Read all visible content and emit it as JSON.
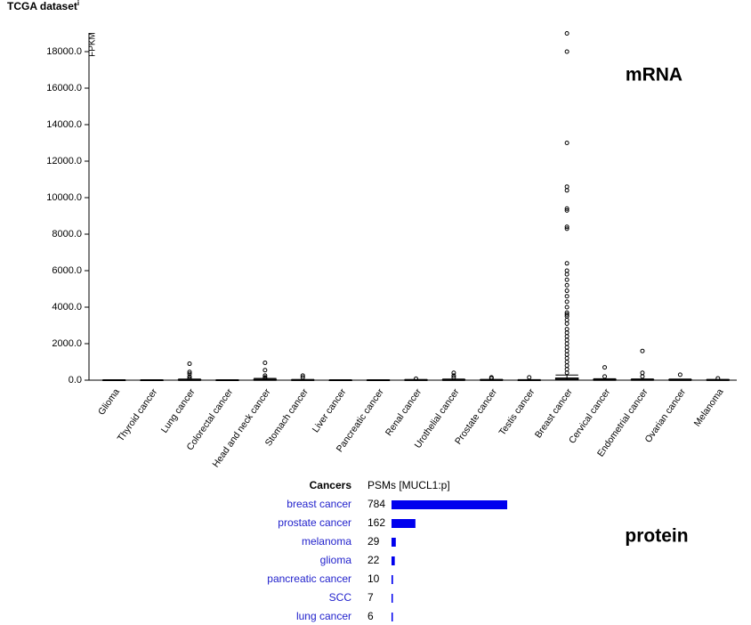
{
  "title": "TCGA dataset",
  "title_sup": "i",
  "chart_data": {
    "type": "box",
    "categories": [
      "Glioma",
      "Thyroid cancer",
      "Lung cancer",
      "Colorectal cancer",
      "Head and neck cancer",
      "Stomach cancer",
      "Liver cancer",
      "Pancreatic cancer",
      "Renal cancer",
      "Urothelial cancer",
      "Prostate cancer",
      "Testis cancer",
      "Breast cancer",
      "Cervical cancer",
      "Endometrial cancer",
      "Ovarian cancer",
      "Melanoma"
    ],
    "ylabel": "FPKM",
    "annotation": "mRNA",
    "ylim": [
      0,
      19000
    ],
    "yticks": [
      {
        "value": 0,
        "label": "0.0"
      },
      {
        "value": 2000,
        "label": "2000.0"
      },
      {
        "value": 4000,
        "label": "4000.0"
      },
      {
        "value": 6000,
        "label": "6000.0"
      },
      {
        "value": 8000,
        "label": "8000.0"
      },
      {
        "value": 10000,
        "label": "10000.0"
      },
      {
        "value": 12000,
        "label": "12000.0"
      },
      {
        "value": 14000,
        "label": "14000.0"
      },
      {
        "value": 16000,
        "label": "16000.0"
      },
      {
        "value": 18000,
        "label": "18000.0"
      }
    ],
    "whisker_low": [
      0,
      0,
      0,
      0,
      0,
      0,
      0,
      0,
      0,
      0,
      0,
      0,
      0,
      0,
      0,
      0,
      0
    ],
    "q1": [
      1,
      1,
      2,
      1,
      3,
      1,
      0,
      1,
      2,
      2,
      2,
      1,
      10,
      3,
      3,
      2,
      2
    ],
    "median": [
      3,
      2,
      8,
      3,
      12,
      5,
      1,
      3,
      6,
      8,
      7,
      4,
      40,
      12,
      10,
      8,
      6
    ],
    "q3": [
      8,
      5,
      25,
      8,
      40,
      15,
      3,
      8,
      15,
      25,
      20,
      10,
      120,
      35,
      30,
      25,
      20
    ],
    "whisker_high": [
      20,
      12,
      60,
      20,
      95,
      35,
      8,
      20,
      35,
      60,
      45,
      25,
      280,
      80,
      70,
      60,
      45
    ],
    "outliers": [
      [],
      [],
      [
        900,
        450,
        350,
        200,
        100
      ],
      [],
      [
        950,
        550,
        250,
        150,
        100
      ],
      [
        250,
        150
      ],
      [],
      [],
      [
        80
      ],
      [
        400,
        250,
        150
      ],
      [
        150,
        100
      ],
      [
        150
      ],
      [
        19000,
        18000,
        13000,
        10600,
        10400,
        9400,
        9300,
        8400,
        8300,
        6400,
        6000,
        5800,
        5500,
        5200,
        4900,
        4600,
        4300,
        4000,
        3700,
        3600,
        3500,
        3300,
        3100,
        2800,
        2600,
        2400,
        2200,
        2000,
        1800,
        1600,
        1400,
        1200,
        1000,
        800,
        600,
        400
      ],
      [
        700,
        200
      ],
      [
        1600,
        400,
        200
      ],
      [
        300
      ],
      [
        100
      ]
    ],
    "color": "#000000"
  },
  "protein": {
    "annotation": "protein",
    "headers": [
      "Cancers",
      "PSMs [MUCL1:p]"
    ],
    "color": "#0000ee",
    "rows": [
      {
        "name": "breast cancer",
        "psms": 784
      },
      {
        "name": "prostate cancer",
        "psms": 162
      },
      {
        "name": "melanoma",
        "psms": 29
      },
      {
        "name": "glioma",
        "psms": 22
      },
      {
        "name": "pancreatic cancer",
        "psms": 10
      },
      {
        "name": "SCC",
        "psms": 7
      },
      {
        "name": "lung cancer",
        "psms": 6
      }
    ]
  }
}
